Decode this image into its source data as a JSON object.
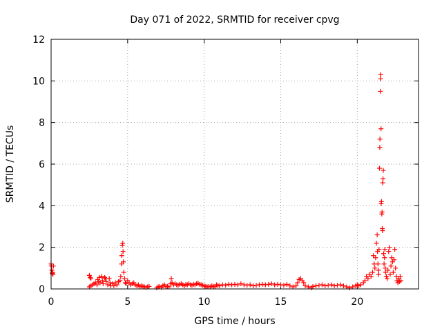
{
  "chart_data": {
    "type": "scatter",
    "title": "Day 071 of 2022, SRMTID for receiver cpvg",
    "xlabel": "GPS time / hours",
    "ylabel": "SRMTID / TECUs",
    "xlim": [
      0,
      24
    ],
    "ylim": [
      0,
      12
    ],
    "xticks": [
      0,
      5,
      10,
      15,
      20
    ],
    "yticks": [
      0,
      2,
      4,
      6,
      8,
      10,
      12
    ],
    "grid": true,
    "marker": "+",
    "color": "#ff0000",
    "series": [
      {
        "name": "SRMTID",
        "points": [
          [
            0.0,
            1.2
          ],
          [
            0.02,
            1.1
          ],
          [
            0.05,
            0.9
          ],
          [
            0.08,
            0.75
          ],
          [
            0.1,
            0.8
          ],
          [
            0.12,
            0.7
          ],
          [
            0.15,
            1.1
          ],
          [
            2.5,
            0.65
          ],
          [
            2.55,
            0.55
          ],
          [
            2.6,
            0.5
          ],
          [
            2.5,
            0.1
          ],
          [
            2.6,
            0.15
          ],
          [
            2.7,
            0.2
          ],
          [
            2.8,
            0.25
          ],
          [
            2.9,
            0.3
          ],
          [
            3.0,
            0.2
          ],
          [
            3.05,
            0.45
          ],
          [
            3.1,
            0.35
          ],
          [
            3.15,
            0.55
          ],
          [
            3.2,
            0.3
          ],
          [
            3.3,
            0.6
          ],
          [
            3.35,
            0.4
          ],
          [
            3.4,
            0.25
          ],
          [
            3.5,
            0.55
          ],
          [
            3.55,
            0.5
          ],
          [
            3.6,
            0.35
          ],
          [
            3.7,
            0.2
          ],
          [
            3.8,
            0.5
          ],
          [
            3.85,
            0.3
          ],
          [
            3.9,
            0.15
          ],
          [
            4.0,
            0.25
          ],
          [
            4.1,
            0.15
          ],
          [
            4.2,
            0.3
          ],
          [
            4.3,
            0.2
          ],
          [
            4.4,
            0.35
          ],
          [
            4.5,
            0.4
          ],
          [
            4.55,
            0.6
          ],
          [
            4.6,
            1.2
          ],
          [
            4.62,
            1.6
          ],
          [
            4.65,
            2.1
          ],
          [
            4.68,
            2.2
          ],
          [
            4.7,
            1.8
          ],
          [
            4.72,
            1.3
          ],
          [
            4.75,
            0.8
          ],
          [
            4.8,
            0.5
          ],
          [
            4.85,
            0.3
          ],
          [
            4.9,
            0.25
          ],
          [
            5.0,
            0.4
          ],
          [
            5.1,
            0.3
          ],
          [
            5.2,
            0.2
          ],
          [
            5.3,
            0.25
          ],
          [
            5.4,
            0.3
          ],
          [
            5.5,
            0.2
          ],
          [
            5.6,
            0.15
          ],
          [
            5.7,
            0.2
          ],
          [
            5.8,
            0.1
          ],
          [
            5.9,
            0.15
          ],
          [
            6.0,
            0.12
          ],
          [
            6.1,
            0.1
          ],
          [
            6.2,
            0.08
          ],
          [
            6.3,
            0.1
          ],
          [
            6.4,
            0.12
          ],
          [
            6.9,
            0.05
          ],
          [
            7.0,
            0.1
          ],
          [
            7.1,
            0.12
          ],
          [
            7.2,
            0.08
          ],
          [
            7.3,
            0.15
          ],
          [
            7.4,
            0.2
          ],
          [
            7.5,
            0.1
          ],
          [
            7.6,
            0.12
          ],
          [
            7.7,
            0.1
          ],
          [
            7.8,
            0.25
          ],
          [
            7.85,
            0.5
          ],
          [
            7.9,
            0.3
          ],
          [
            8.0,
            0.2
          ],
          [
            8.1,
            0.25
          ],
          [
            8.2,
            0.2
          ],
          [
            8.3,
            0.18
          ],
          [
            8.4,
            0.22
          ],
          [
            8.5,
            0.25
          ],
          [
            8.6,
            0.2
          ],
          [
            8.7,
            0.15
          ],
          [
            8.8,
            0.22
          ],
          [
            8.9,
            0.2
          ],
          [
            9.0,
            0.25
          ],
          [
            9.1,
            0.2
          ],
          [
            9.2,
            0.18
          ],
          [
            9.3,
            0.22
          ],
          [
            9.4,
            0.2
          ],
          [
            9.5,
            0.25
          ],
          [
            9.6,
            0.28
          ],
          [
            9.7,
            0.22
          ],
          [
            9.8,
            0.2
          ],
          [
            9.9,
            0.18
          ],
          [
            10.0,
            0.15
          ],
          [
            10.1,
            0.12
          ],
          [
            10.2,
            0.1
          ],
          [
            10.3,
            0.12
          ],
          [
            10.4,
            0.1
          ],
          [
            10.5,
            0.15
          ],
          [
            10.6,
            0.12
          ],
          [
            10.7,
            0.1
          ],
          [
            10.8,
            0.2
          ],
          [
            10.9,
            0.18
          ],
          [
            11.0,
            0.15
          ],
          [
            11.2,
            0.2
          ],
          [
            11.4,
            0.18
          ],
          [
            11.6,
            0.22
          ],
          [
            11.8,
            0.2
          ],
          [
            12.0,
            0.22
          ],
          [
            12.2,
            0.2
          ],
          [
            12.4,
            0.25
          ],
          [
            12.6,
            0.2
          ],
          [
            12.8,
            0.18
          ],
          [
            13.0,
            0.2
          ],
          [
            13.2,
            0.15
          ],
          [
            13.4,
            0.18
          ],
          [
            13.6,
            0.2
          ],
          [
            13.8,
            0.22
          ],
          [
            14.0,
            0.2
          ],
          [
            14.2,
            0.22
          ],
          [
            14.4,
            0.25
          ],
          [
            14.6,
            0.2
          ],
          [
            14.8,
            0.22
          ],
          [
            15.0,
            0.2
          ],
          [
            15.2,
            0.18
          ],
          [
            15.4,
            0.22
          ],
          [
            15.6,
            0.15
          ],
          [
            15.8,
            0.1
          ],
          [
            16.0,
            0.15
          ],
          [
            16.1,
            0.3
          ],
          [
            16.2,
            0.45
          ],
          [
            16.3,
            0.5
          ],
          [
            16.4,
            0.4
          ],
          [
            16.5,
            0.3
          ],
          [
            16.6,
            0.15
          ],
          [
            16.8,
            0.1
          ],
          [
            17.0,
            0.05
          ],
          [
            17.1,
            0.12
          ],
          [
            17.3,
            0.15
          ],
          [
            17.5,
            0.18
          ],
          [
            17.7,
            0.2
          ],
          [
            17.9,
            0.15
          ],
          [
            18.1,
            0.18
          ],
          [
            18.3,
            0.2
          ],
          [
            18.5,
            0.15
          ],
          [
            18.7,
            0.18
          ],
          [
            18.9,
            0.2
          ],
          [
            19.1,
            0.15
          ],
          [
            19.3,
            0.1
          ],
          [
            19.5,
            0.05
          ],
          [
            19.7,
            0.1
          ],
          [
            19.9,
            0.15
          ],
          [
            20.0,
            0.2
          ],
          [
            20.1,
            0.15
          ],
          [
            20.2,
            0.2
          ],
          [
            20.4,
            0.3
          ],
          [
            20.5,
            0.4
          ],
          [
            20.6,
            0.6
          ],
          [
            20.7,
            0.5
          ],
          [
            20.8,
            0.7
          ],
          [
            20.9,
            0.6
          ],
          [
            21.0,
            0.8
          ],
          [
            21.05,
            1.6
          ],
          [
            21.1,
            1.2
          ],
          [
            21.15,
            1.0
          ],
          [
            21.2,
            1.5
          ],
          [
            21.25,
            2.2
          ],
          [
            21.3,
            2.6
          ],
          [
            21.32,
            1.8
          ],
          [
            21.35,
            1.2
          ],
          [
            21.38,
            0.9
          ],
          [
            21.4,
            0.7
          ],
          [
            21.42,
            1.9
          ],
          [
            21.45,
            5.8
          ],
          [
            21.47,
            6.8
          ],
          [
            21.48,
            7.2
          ],
          [
            21.5,
            9.5
          ],
          [
            21.52,
            10.1
          ],
          [
            21.53,
            10.3
          ],
          [
            21.55,
            7.7
          ],
          [
            21.56,
            4.1
          ],
          [
            21.58,
            4.2
          ],
          [
            21.6,
            3.6
          ],
          [
            21.62,
            3.7
          ],
          [
            21.63,
            2.9
          ],
          [
            21.65,
            2.8
          ],
          [
            21.66,
            5.1
          ],
          [
            21.68,
            5.3
          ],
          [
            21.7,
            5.7
          ],
          [
            21.72,
            1.7
          ],
          [
            21.75,
            1.2
          ],
          [
            21.78,
            1.5
          ],
          [
            21.8,
            1.9
          ],
          [
            21.82,
            1.0
          ],
          [
            21.85,
            0.8
          ],
          [
            21.9,
            0.6
          ],
          [
            21.95,
            0.5
          ],
          [
            22.0,
            0.9
          ],
          [
            22.05,
            1.8
          ],
          [
            22.1,
            2.0
          ],
          [
            22.15,
            0.7
          ],
          [
            22.2,
            1.1
          ],
          [
            22.25,
            1.5
          ],
          [
            22.3,
            1.3
          ],
          [
            22.35,
            0.8
          ],
          [
            22.4,
            1.4
          ],
          [
            22.45,
            1.9
          ],
          [
            22.5,
            1.0
          ],
          [
            22.55,
            0.6
          ],
          [
            22.6,
            0.4
          ],
          [
            22.65,
            0.3
          ],
          [
            22.7,
            0.5
          ],
          [
            22.75,
            0.35
          ],
          [
            22.8,
            0.6
          ],
          [
            22.85,
            0.4
          ]
        ]
      }
    ]
  }
}
